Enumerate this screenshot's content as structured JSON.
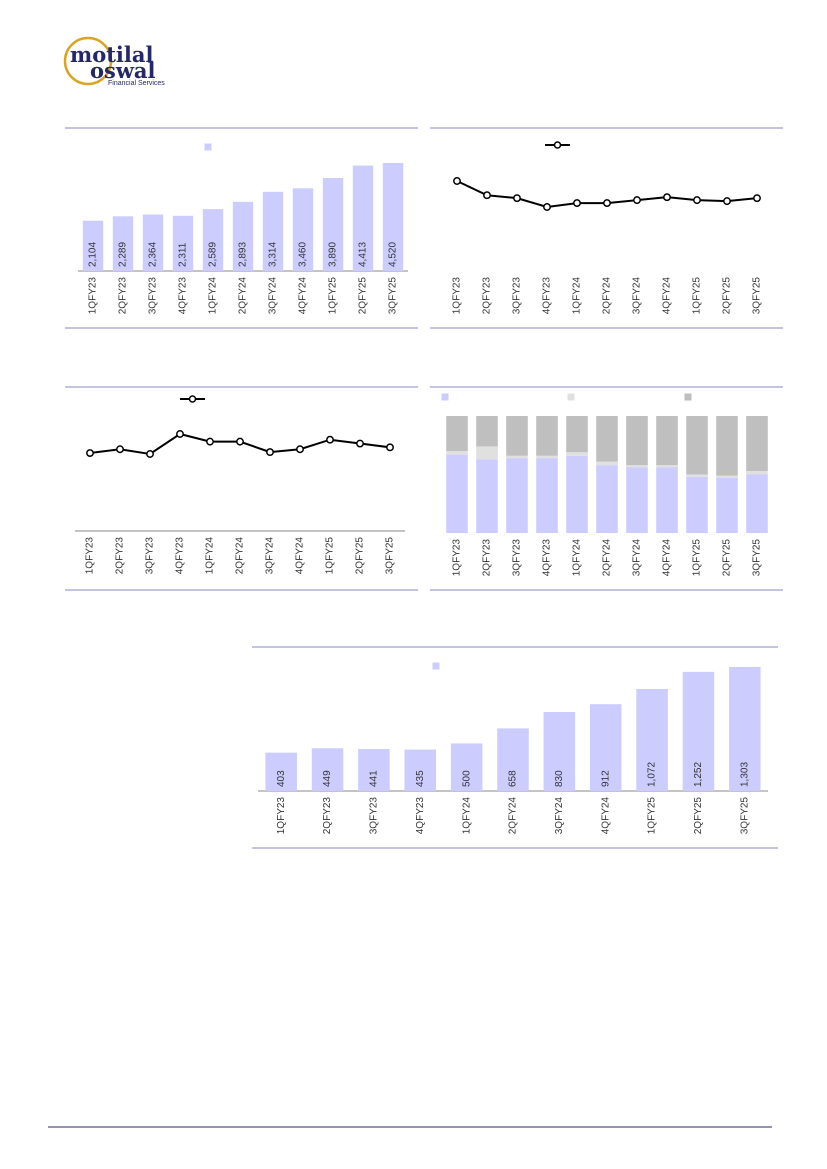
{
  "header": {
    "logo_top": "motilal",
    "logo_bottom": "oswal",
    "logo_sub": "Financial Services"
  },
  "chart_data": [
    {
      "type": "bar",
      "categories": [
        "1QFY23",
        "2QFY23",
        "3QFY23",
        "4QFY23",
        "1QFY24",
        "2QFY24",
        "3QFY24",
        "4QFY24",
        "1QFY25",
        "2QFY25",
        "3QFY25"
      ],
      "series": [
        {
          "color": "#ccccff",
          "values": [
            2104,
            2289,
            2364,
            2311,
            2589,
            2893,
            3314,
            3460,
            3890,
            4413,
            4520
          ],
          "value_labels": [
            "2,104",
            "2,289",
            "2,364",
            "2,311",
            "2,589",
            "2,893",
            "3,314",
            "3,460",
            "3,890",
            "4,413",
            "4,520"
          ]
        }
      ]
    },
    {
      "type": "line",
      "categories": [
        "1QFY23",
        "2QFY23",
        "3QFY23",
        "4QFY23",
        "1QFY24",
        "2QFY24",
        "3QFY24",
        "4QFY24",
        "1QFY25",
        "2QFY25",
        "3QFY25"
      ],
      "series": [
        {
          "color": "#000000",
          "values": [
            38.5,
            35.6,
            35.0,
            33.2,
            34.0,
            34.0,
            34.6,
            35.2,
            34.6,
            34.4,
            35.0
          ]
        }
      ]
    },
    {
      "type": "line",
      "categories": [
        "1QFY23",
        "2QFY23",
        "3QFY23",
        "4QFY23",
        "1QFY24",
        "2QFY24",
        "3QFY24",
        "4QFY24",
        "1QFY25",
        "2QFY25",
        "3QFY25"
      ],
      "series": [
        {
          "color": "#000000",
          "values": [
            20.0,
            20.4,
            19.9,
            22.0,
            21.2,
            21.2,
            20.1,
            20.4,
            21.4,
            21.0,
            20.6
          ]
        }
      ]
    },
    {
      "type": "stacked_bar",
      "categories": [
        "1QFY23",
        "2QFY23",
        "3QFY23",
        "4QFY23",
        "1QFY24",
        "2QFY24",
        "3QFY24",
        "4QFY24",
        "1QFY25",
        "2QFY25",
        "3QFY25"
      ],
      "series": [
        {
          "color": "#ccccff",
          "values": [
            67,
            63,
            64,
            64,
            66,
            58,
            56,
            56,
            48,
            47,
            50
          ]
        },
        {
          "color": "#e0e0e0",
          "values": [
            3,
            11,
            2,
            2,
            3,
            3,
            2,
            2,
            2,
            2,
            3
          ]
        },
        {
          "color": "#bfbfbf",
          "values": [
            30,
            26,
            34,
            34,
            31,
            39,
            42,
            42,
            50,
            51,
            47
          ]
        }
      ]
    },
    {
      "type": "bar",
      "categories": [
        "1QFY23",
        "2QFY23",
        "3QFY23",
        "4QFY23",
        "1QFY24",
        "2QFY24",
        "3QFY24",
        "4QFY24",
        "1QFY25",
        "2QFY25",
        "3QFY25"
      ],
      "series": [
        {
          "color": "#ccccff",
          "values": [
            403,
            449,
            441,
            435,
            500,
            658,
            830,
            912,
            1072,
            1252,
            1303
          ],
          "value_labels": [
            "403",
            "449",
            "441",
            "435",
            "500",
            "658",
            "830",
            "912",
            "1,072",
            "1,252",
            "1,303"
          ]
        }
      ]
    }
  ]
}
